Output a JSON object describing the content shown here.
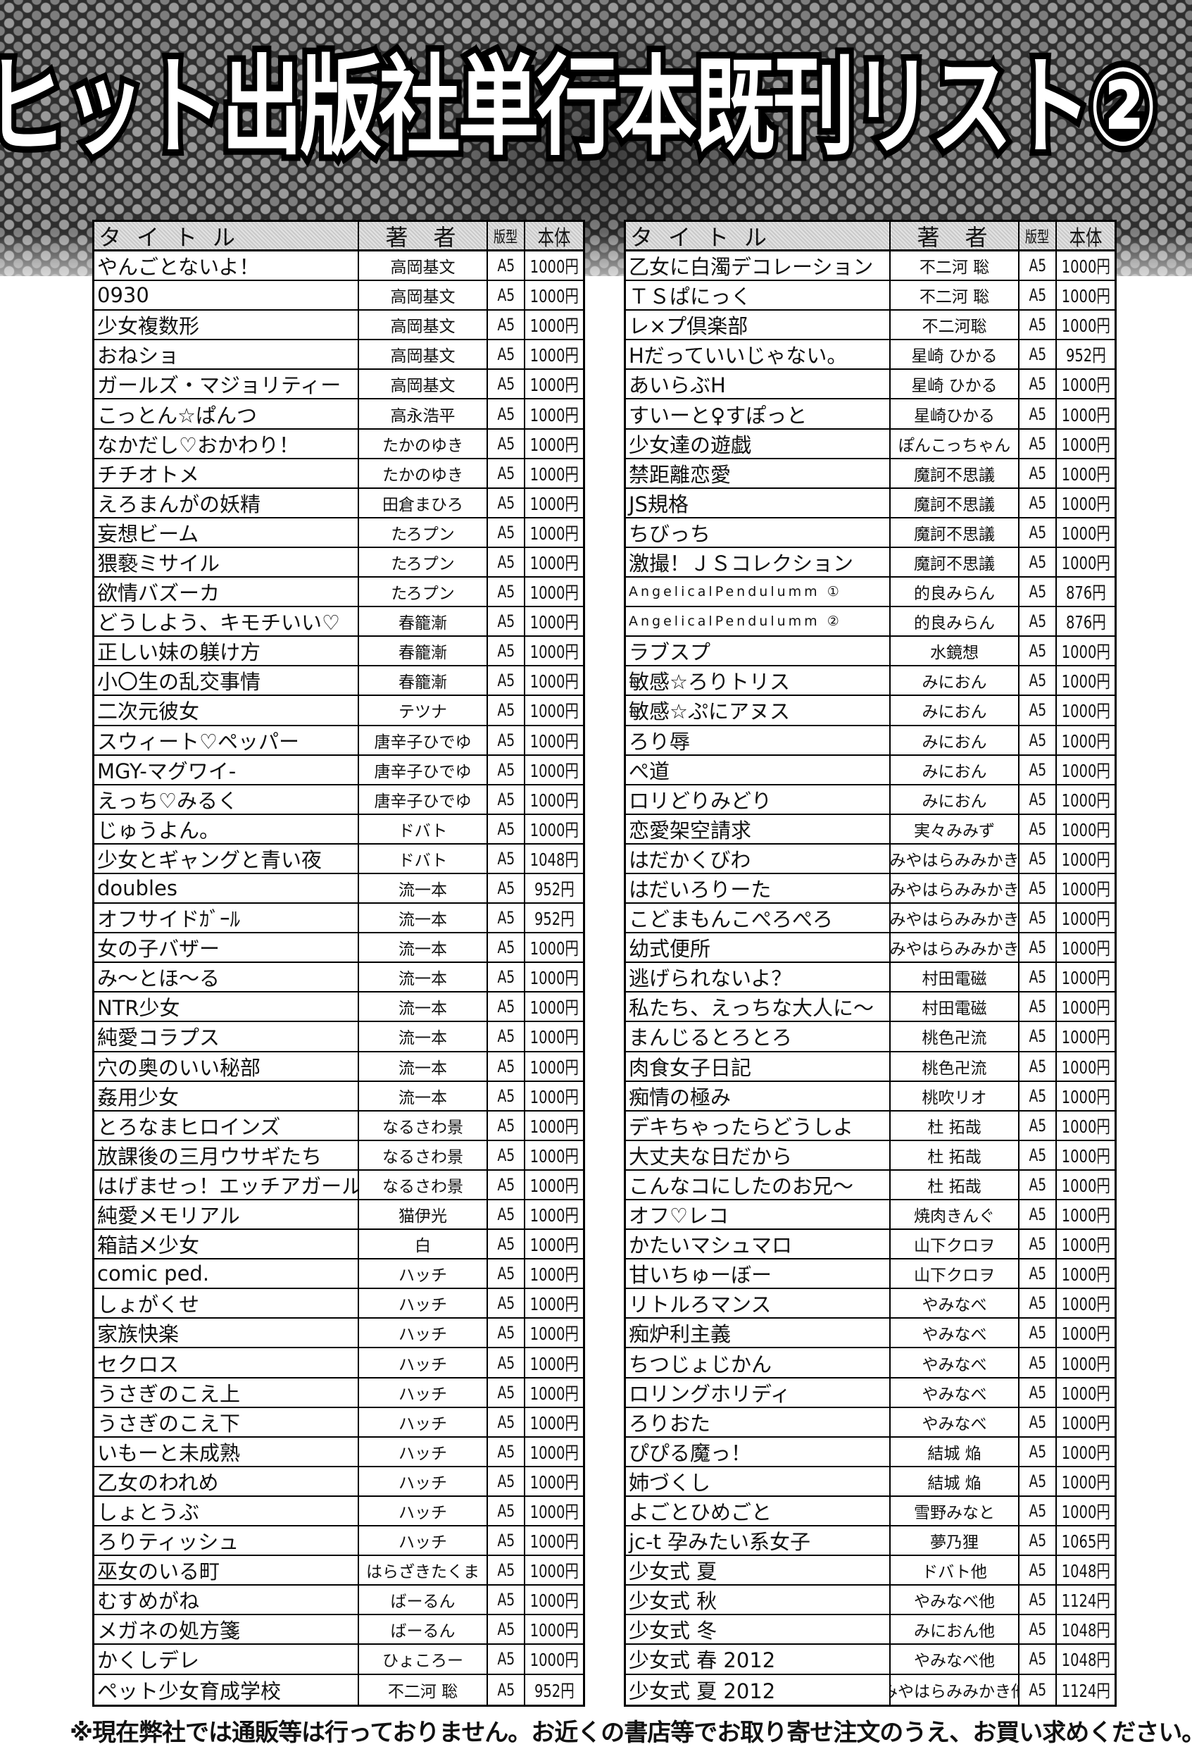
{
  "header": {
    "title": "ヒット出版社単行本既刊リスト②"
  },
  "columns": [
    "タイトル",
    "著者",
    "版型",
    "本体"
  ],
  "left_table": {
    "rows": [
      [
        "やんごとないよ！",
        "高岡基文",
        "A5",
        "1000円"
      ],
      [
        "0930",
        "高岡基文",
        "A5",
        "1000円"
      ],
      [
        "少女複数形",
        "高岡基文",
        "A5",
        "1000円"
      ],
      [
        "おねショ",
        "高岡基文",
        "A5",
        "1000円"
      ],
      [
        "ガールズ・マジョリティー",
        "高岡基文",
        "A5",
        "1000円"
      ],
      [
        "こっとん☆ぱんつ",
        "高永浩平",
        "A5",
        "1000円"
      ],
      [
        "なかだし♡おかわり！",
        "たかのゆき",
        "A5",
        "1000円"
      ],
      [
        "チチオトメ",
        "たかのゆき",
        "A5",
        "1000円"
      ],
      [
        "えろまんがの妖精",
        "田倉まひろ",
        "A5",
        "1000円"
      ],
      [
        "妄想ビーム",
        "たろプン",
        "A5",
        "1000円"
      ],
      [
        "猥褻ミサイル",
        "たろプン",
        "A5",
        "1000円"
      ],
      [
        "欲情バズーカ",
        "たろプン",
        "A5",
        "1000円"
      ],
      [
        "どうしよう、キモチいい♡",
        "春籠漸",
        "A5",
        "1000円"
      ],
      [
        "正しい妹の躾け方",
        "春籠漸",
        "A5",
        "1000円"
      ],
      [
        "小〇生の乱交事情",
        "春籠漸",
        "A5",
        "1000円"
      ],
      [
        "二次元彼女",
        "テツナ",
        "A5",
        "1000円"
      ],
      [
        "スウィート♡ペッパー",
        "唐辛子ひでゆ",
        "A5",
        "1000円"
      ],
      [
        "MGY-マグワイ-",
        "唐辛子ひでゆ",
        "A5",
        "1000円"
      ],
      [
        "えっち♡みるく",
        "唐辛子ひでゆ",
        "A5",
        "1000円"
      ],
      [
        "じゅうよん。",
        "ドバト",
        "A5",
        "1000円"
      ],
      [
        "少女とギャングと青い夜",
        "ドバト",
        "A5",
        "1048円"
      ],
      [
        "doubles",
        "流一本",
        "A5",
        "952円"
      ],
      [
        "オフサイドｶﾞｰﾙ",
        "流一本",
        "A5",
        "952円"
      ],
      [
        "女の子バザー",
        "流一本",
        "A5",
        "1000円"
      ],
      [
        "み～とほ～る",
        "流一本",
        "A5",
        "1000円"
      ],
      [
        "NTR少女",
        "流一本",
        "A5",
        "1000円"
      ],
      [
        "純愛コラプス",
        "流一本",
        "A5",
        "1000円"
      ],
      [
        "穴の奥のいい秘部",
        "流一本",
        "A5",
        "1000円"
      ],
      [
        "姦用少女",
        "流一本",
        "A5",
        "1000円"
      ],
      [
        "とろなまヒロインズ",
        "なるさわ景",
        "A5",
        "1000円"
      ],
      [
        "放課後の三月ウサギたち",
        "なるさわ景",
        "A5",
        "1000円"
      ],
      [
        "はげませっ！エッチアガール",
        "なるさわ景",
        "A5",
        "1000円"
      ],
      [
        "純愛メモリアル",
        "猫伊光",
        "A5",
        "1000円"
      ],
      [
        "箱詰メ少女",
        "白",
        "A5",
        "1000円"
      ],
      [
        "comic ped.",
        "ハッチ",
        "A5",
        "1000円"
      ],
      [
        "しょがくせ",
        "ハッチ",
        "A5",
        "1000円"
      ],
      [
        "家族快楽",
        "ハッチ",
        "A5",
        "1000円"
      ],
      [
        "セクロス",
        "ハッチ",
        "A5",
        "1000円"
      ],
      [
        "うさぎのこえ上",
        "ハッチ",
        "A5",
        "1000円"
      ],
      [
        "うさぎのこえ下",
        "ハッチ",
        "A5",
        "1000円"
      ],
      [
        "いもーと未成熟",
        "ハッチ",
        "A5",
        "1000円"
      ],
      [
        "乙女のわれめ",
        "ハッチ",
        "A5",
        "1000円"
      ],
      [
        "しょとうぶ",
        "ハッチ",
        "A5",
        "1000円"
      ],
      [
        "ろりティッシュ",
        "ハッチ",
        "A5",
        "1000円"
      ],
      [
        "巫女のいる町",
        "はらざきたくま",
        "A5",
        "1000円"
      ],
      [
        "むすめがね",
        "ばーるん",
        "A5",
        "1000円"
      ],
      [
        "メガネの処方箋",
        "ばーるん",
        "A5",
        "1000円"
      ],
      [
        "かくしデレ",
        "ひょころー",
        "A5",
        "1000円"
      ],
      [
        "ペット少女育成学校",
        "不二河 聡",
        "A5",
        "952円"
      ]
    ]
  },
  "right_table": {
    "rows": [
      [
        "乙女に白濁デコレーション",
        "不二河 聡",
        "A5",
        "1000円"
      ],
      [
        "ＴＳぱにっく",
        "不二河 聡",
        "A5",
        "1000円"
      ],
      [
        "レ×プ倶楽部",
        "不二河聡",
        "A5",
        "1000円"
      ],
      [
        "Hだっていいじゃない。",
        "星崎 ひかる",
        "A5",
        "952円"
      ],
      [
        "あいらぶH",
        "星崎 ひかる",
        "A5",
        "1000円"
      ],
      [
        "すいーと♀すぽっと",
        "星崎ひかる",
        "A5",
        "1000円"
      ],
      [
        "少女達の遊戯",
        "ぽんこっちゃん",
        "A5",
        "1000円"
      ],
      [
        "禁距離恋愛",
        "魔訶不思議",
        "A5",
        "1000円"
      ],
      [
        "JS規格",
        "魔訶不思議",
        "A5",
        "1000円"
      ],
      [
        "ちびっち",
        "魔訶不思議",
        "A5",
        "1000円"
      ],
      [
        "激撮！ＪＳコレクション",
        "魔訶不思議",
        "A5",
        "1000円"
      ],
      [
        "AngelicalPendulumm ①",
        "的良みらん",
        "A5",
        "876円"
      ],
      [
        "AngelicalPendulumm ②",
        "的良みらん",
        "A5",
        "876円"
      ],
      [
        "ラブスプ",
        "水鏡想",
        "A5",
        "1000円"
      ],
      [
        "敏感☆ろりトリス",
        "みにおん",
        "A5",
        "1000円"
      ],
      [
        "敏感☆ぷにアヌス",
        "みにおん",
        "A5",
        "1000円"
      ],
      [
        "ろり辱",
        "みにおん",
        "A5",
        "1000円"
      ],
      [
        "ぺ道",
        "みにおん",
        "A5",
        "1000円"
      ],
      [
        "ロリどりみどり",
        "みにおん",
        "A5",
        "1000円"
      ],
      [
        "恋愛架空請求",
        "実々みみず",
        "A5",
        "1000円"
      ],
      [
        "はだかくびわ",
        "みやはらみみかき",
        "A5",
        "1000円"
      ],
      [
        "はだいろりーた",
        "みやはらみみかき",
        "A5",
        "1000円"
      ],
      [
        "こどまもんこぺろぺろ",
        "みやはらみみかき",
        "A5",
        "1000円"
      ],
      [
        "幼式便所",
        "みやはらみみかき",
        "A5",
        "1000円"
      ],
      [
        "逃げられないよ？",
        "村田電磁",
        "A5",
        "1000円"
      ],
      [
        "私たち、えっちな大人に～",
        "村田電磁",
        "A5",
        "1000円"
      ],
      [
        "まんじるとろとろ",
        "桃色卍流",
        "A5",
        "1000円"
      ],
      [
        "肉食女子日記",
        "桃色卍流",
        "A5",
        "1000円"
      ],
      [
        "痴情の極み",
        "桃吹リオ",
        "A5",
        "1000円"
      ],
      [
        "デキちゃったらどうしよ",
        "杜 拓哉",
        "A5",
        "1000円"
      ],
      [
        "大丈夫な日だから",
        "杜 拓哉",
        "A5",
        "1000円"
      ],
      [
        "こんなコにしたのお兄～",
        "杜 拓哉",
        "A5",
        "1000円"
      ],
      [
        "オフ♡レコ",
        "焼肉きんぐ",
        "A5",
        "1000円"
      ],
      [
        "かたいマシュマロ",
        "山下クロヲ",
        "A5",
        "1000円"
      ],
      [
        "甘いちゅーぼー",
        "山下クロヲ",
        "A5",
        "1000円"
      ],
      [
        "リトルろマンス",
        "やみなべ",
        "A5",
        "1000円"
      ],
      [
        "痴炉利主義",
        "やみなべ",
        "A5",
        "1000円"
      ],
      [
        "ちつじょじかん",
        "やみなべ",
        "A5",
        "1000円"
      ],
      [
        "ロリングホリディ",
        "やみなべ",
        "A5",
        "1000円"
      ],
      [
        "ろりおた",
        "やみなべ",
        "A5",
        "1000円"
      ],
      [
        "ぴぴる魔っ！",
        "結城 焔",
        "A5",
        "1000円"
      ],
      [
        "姉づくし",
        "結城 焔",
        "A5",
        "1000円"
      ],
      [
        "よごとひめごと",
        "雪野みなと",
        "A5",
        "1000円"
      ],
      [
        "jc-t 孕みたい系女子",
        "夢乃狸",
        "A5",
        "1065円"
      ],
      [
        "少女式 夏",
        "ドバト他",
        "A5",
        "1048円"
      ],
      [
        "少女式 秋",
        "やみなべ他",
        "A5",
        "1124円"
      ],
      [
        "少女式 冬",
        "みにおん他",
        "A5",
        "1048円"
      ],
      [
        "少女式 春 2012",
        "やみなべ他",
        "A5",
        "1048円"
      ],
      [
        "少女式 夏 2012",
        "みやはらみみかき他",
        "A5",
        "1124円"
      ]
    ]
  },
  "footer": {
    "notice": "※現在弊社では通販等は行っておりません。お近くの書店等でお取り寄せ注文のうえ、お買い求めください。"
  }
}
